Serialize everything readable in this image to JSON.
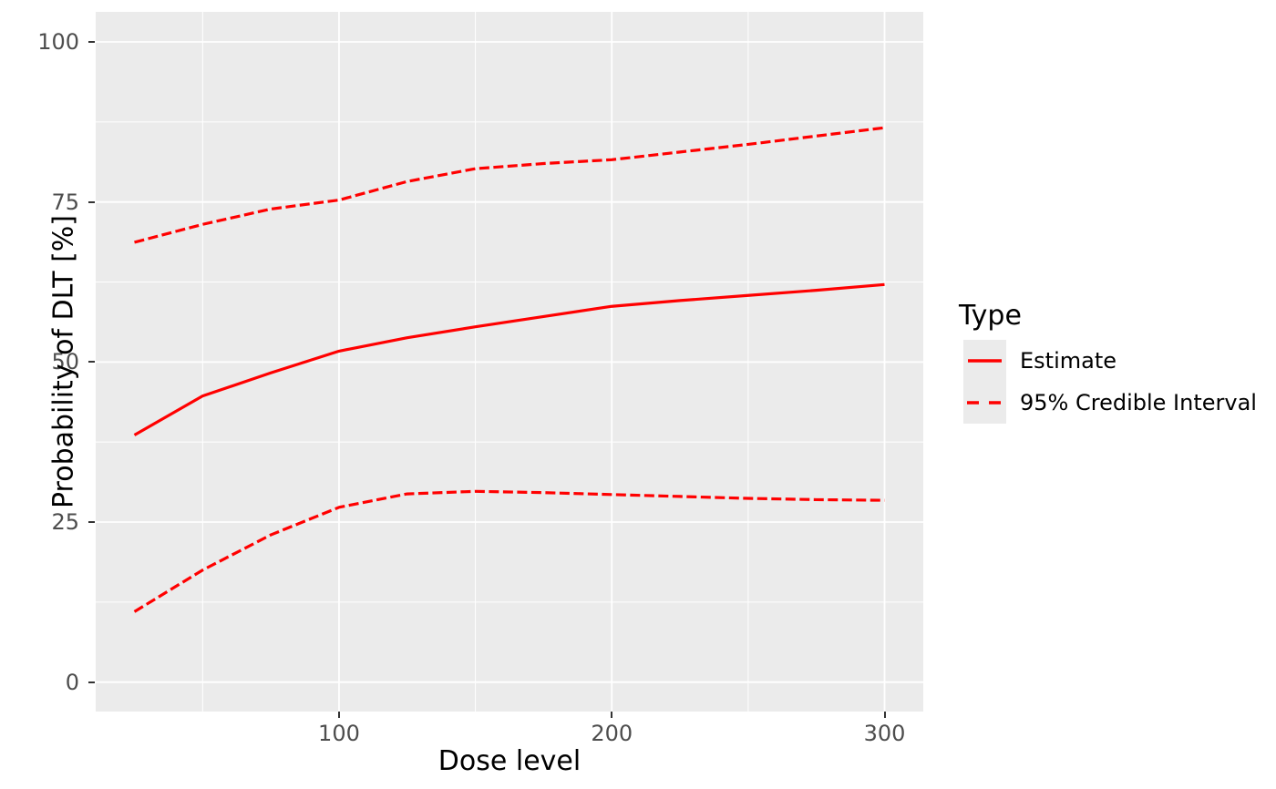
{
  "colors": {
    "line_red": "#ff0000",
    "panel_bg": "#ebebeb",
    "grid": "#ffffff",
    "tick_label": "#4d4d4d",
    "tick_mark": "#333333",
    "title_text": "#000000",
    "legend_key_bg": "#ebebeb",
    "page_bg": "#ffffff"
  },
  "legend": {
    "title": "Type",
    "entries": [
      {
        "label": "Estimate",
        "style": "solid"
      },
      {
        "label": "95% Credible Interval",
        "style": "dashed"
      }
    ]
  },
  "axes": {
    "x_ticks": {
      "values": [
        100,
        200,
        300
      ],
      "labels": [
        "100",
        "200",
        "300"
      ]
    },
    "y_ticks": {
      "values": [
        0,
        25,
        50,
        75,
        100
      ],
      "labels": [
        "0",
        "25",
        "50",
        "75",
        "100"
      ]
    },
    "x_minor": [
      50,
      150,
      250
    ],
    "y_minor": [
      12.5,
      37.5,
      62.5,
      87.5
    ],
    "x_range_expanded": [
      10.8,
      314.2
    ],
    "y_range_expanded": [
      -4.6,
      104.7
    ]
  },
  "chart_data": {
    "type": "line",
    "title": "",
    "xlabel": "Dose level",
    "ylabel": "Probability of DLT [%]",
    "x": [
      25,
      50,
      75,
      100,
      125,
      150,
      175,
      200,
      225,
      250,
      275,
      300
    ],
    "series": [
      {
        "name": "Estimate",
        "style": "solid",
        "values": [
          38.6,
          44.7,
          48.3,
          51.7,
          53.8,
          55.5,
          57.1,
          58.7,
          59.6,
          60.4,
          61.2,
          62.1
        ]
      },
      {
        "name": "95% Credible Interval upper",
        "style": "dashed",
        "values": [
          68.7,
          71.5,
          73.9,
          75.3,
          78.2,
          80.2,
          81.0,
          81.6,
          82.8,
          84.0,
          85.3,
          86.6
        ]
      },
      {
        "name": "95% Credible Interval lower",
        "style": "dashed",
        "values": [
          11.0,
          17.5,
          23.0,
          27.3,
          29.4,
          29.8,
          29.6,
          29.3,
          29.0,
          28.7,
          28.5,
          28.4
        ]
      }
    ],
    "xlim": [
      25,
      300
    ],
    "ylim": [
      0,
      100
    ],
    "grid": true,
    "legend_position": "right"
  }
}
